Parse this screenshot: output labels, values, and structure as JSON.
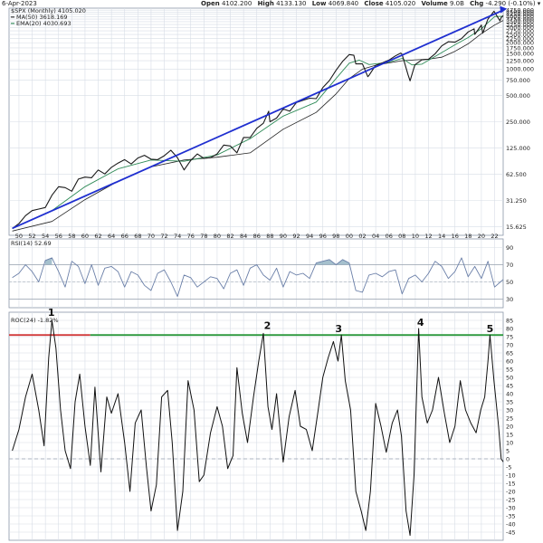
{
  "header": {
    "date": "6-Apr-2023",
    "open_label": "Open",
    "open": "4102.200",
    "high_label": "High",
    "high": "4133.130",
    "low_label": "Low",
    "low": "4069.840",
    "close_label": "Close",
    "close": "4105.020",
    "volume_label": "Volume",
    "volume": "9.0B",
    "chg_label": "Chg",
    "chg": "-4.290 (-0.10%)"
  },
  "colors": {
    "price": "#1a1a1a",
    "ma50": "#222222",
    "ema20": "#2e8b57",
    "trendline": "#1f2fd0",
    "rsi": "#6a7fa8",
    "rsi_fill": "#7fa5b8",
    "roc": "#111111",
    "level_red": "#d23c3c",
    "level_green": "#2e9a3e",
    "grid": "#d7dde6"
  },
  "chart_data": [
    {
      "type": "line",
      "title": "$SPX (Monthly) 4105.020",
      "scale": "log",
      "x_ticks": [
        "50",
        "52",
        "54",
        "56",
        "58",
        "60",
        "62",
        "64",
        "66",
        "68",
        "70",
        "72",
        "74",
        "76",
        "78",
        "80",
        "82",
        "84",
        "86",
        "88",
        "90",
        "92",
        "94",
        "96",
        "98",
        "00",
        "02",
        "04",
        "06",
        "08",
        "10",
        "12",
        "14",
        "16",
        "18",
        "20",
        "22"
      ],
      "y_ticks": [
        15.625,
        31.25,
        62.5,
        125,
        250,
        500,
        750,
        1000,
        1250,
        1500,
        1750,
        2000,
        2250,
        2500,
        2750,
        3000,
        3250,
        3500,
        3750,
        4000,
        4250,
        4500,
        4750
      ],
      "y_tick_labels": [
        "15.625",
        "31.250",
        "62.500",
        "125.000",
        "250.000",
        "500.000",
        "750.000",
        "1000.000",
        "1250.000",
        "1500.000",
        "1750.000",
        "2000.000",
        "2250.000",
        "2500.000",
        "2750.000",
        "3000.000",
        "3250.000",
        "3500.000",
        "3750.000",
        "4000.000",
        "4250.000",
        "4500.000",
        "4750.000"
      ],
      "x_range": [
        1948.5,
        2023.3
      ],
      "y_range": [
        12.5,
        5000
      ],
      "series": [
        {
          "name": "$SPX (Monthly)",
          "x": [
            1949,
            1950,
            1951,
            1952,
            1953,
            1954,
            1955,
            1956,
            1957,
            1958,
            1959,
            1960,
            1961,
            1962,
            1963,
            1964,
            1965,
            1966,
            1967,
            1968,
            1969,
            1970,
            1971,
            1972,
            1973,
            1974,
            1975,
            1976,
            1977,
            1978,
            1979,
            1980,
            1981,
            1982,
            1983,
            1984,
            1985,
            1986,
            1987,
            1987.8,
            1988,
            1989,
            1990,
            1991,
            1992,
            1993,
            1994,
            1995,
            1996,
            1997,
            1998,
            1999,
            2000,
            2000.7,
            2001,
            2002,
            2002.8,
            2003,
            2004,
            2005,
            2006,
            2007,
            2007.8,
            2008,
            2008.9,
            2009.2,
            2009.9,
            2010,
            2011,
            2012,
            2013,
            2014,
            2015,
            2016,
            2017,
            2018,
            2018.9,
            2019,
            2020,
            2020.2,
            2020.9,
            2021,
            2021.9,
            2022,
            2022.8,
            2023,
            2023.3
          ],
          "y": [
            15,
            17,
            21,
            24,
            25,
            26,
            36,
            45,
            44,
            40,
            55,
            58,
            57,
            70,
            63,
            75,
            84,
            92,
            82,
            96,
            103,
            93,
            92,
            102,
            118,
            97,
            70,
            90,
            107,
            95,
            97,
            107,
            135,
            132,
            110,
            165,
            165,
            210,
            240,
            330,
            250,
            275,
            350,
            330,
            415,
            440,
            465,
            460,
            615,
            740,
            970,
            1230,
            1469,
            1440,
            1150,
            1150,
            820,
            850,
            1110,
            1180,
            1270,
            1420,
            1530,
            1480,
            860,
            735,
            1100,
            1130,
            1280,
            1300,
            1500,
            1850,
            2060,
            2040,
            2240,
            2670,
            2900,
            2500,
            3200,
            2580,
            3600,
            3750,
            4600,
            4500,
            3580,
            3900,
            4105
          ]
        },
        {
          "name": "MA(50) 3618.169",
          "x": [
            1949,
            1955,
            1960,
            1965,
            1970,
            1975,
            1980,
            1985,
            1990,
            1995,
            1998,
            2000,
            2002,
            2004,
            2006,
            2008,
            2010,
            2012,
            2014,
            2016,
            2018,
            2020,
            2022,
            2023.3
          ],
          "y": [
            14,
            18,
            32,
            52,
            76,
            91,
            98,
            110,
            205,
            320,
            520,
            780,
            1000,
            1110,
            1180,
            1250,
            1280,
            1300,
            1370,
            1600,
            1950,
            2550,
            3200,
            3618
          ]
        },
        {
          "name": "EMA(20) 4030.693",
          "x": [
            1949,
            1955,
            1960,
            1965,
            1970,
            1975,
            1980,
            1985,
            1990,
            1995,
            1998,
            2000,
            2001.5,
            2003,
            2006,
            2008,
            2009.5,
            2011,
            2014,
            2016,
            2018,
            2020,
            2022,
            2023.3
          ],
          "y": [
            15,
            24,
            45,
            72,
            91,
            88,
            104,
            160,
            290,
            420,
            780,
            1170,
            1270,
            1130,
            1200,
            1330,
            1120,
            1140,
            1550,
            1900,
            2300,
            2900,
            4000,
            4030
          ]
        },
        {
          "name": "trendline",
          "x": [
            1949,
            2023.2
          ],
          "y": [
            15,
            4700
          ]
        }
      ]
    },
    {
      "type": "line",
      "title": "RSI(14) 52.69",
      "x_range": [
        1948.5,
        2023.3
      ],
      "y_range": [
        20,
        100
      ],
      "y_ticks": [
        30,
        50,
        70,
        90
      ],
      "y_tick_labels": [
        "30",
        "50",
        "70",
        "90"
      ],
      "series": [
        {
          "name": "RSI(14) 52.69",
          "x": [
            1949,
            1950,
            1951,
            1952,
            1953,
            1954,
            1955,
            1956,
            1957,
            1958,
            1959,
            1960,
            1961,
            1962,
            1963,
            1964,
            1965,
            1966,
            1967,
            1968,
            1969,
            1970,
            1971,
            1972,
            1973,
            1974,
            1975,
            1976,
            1977,
            1978,
            1979,
            1980,
            1981,
            1982,
            1983,
            1984,
            1985,
            1986,
            1987,
            1988,
            1989,
            1990,
            1991,
            1992,
            1993,
            1994,
            1995,
            1996,
            1997,
            1998,
            1999,
            2000,
            2001,
            2002,
            2003,
            2004,
            2005,
            2006,
            2007,
            2008,
            2009,
            2010,
            2011,
            2012,
            2013,
            2014,
            2015,
            2016,
            2017,
            2018,
            2019,
            2020,
            2021,
            2022,
            2023.3
          ],
          "y": [
            55,
            60,
            70,
            62,
            50,
            75,
            78,
            62,
            44,
            74,
            68,
            48,
            70,
            46,
            66,
            68,
            62,
            44,
            62,
            58,
            46,
            40,
            60,
            64,
            50,
            33,
            58,
            55,
            44,
            50,
            56,
            54,
            42,
            60,
            64,
            46,
            66,
            70,
            58,
            52,
            66,
            44,
            62,
            58,
            60,
            54,
            72,
            74,
            76,
            70,
            76,
            72,
            40,
            38,
            58,
            60,
            56,
            62,
            64,
            36,
            54,
            58,
            50,
            60,
            74,
            68,
            54,
            62,
            78,
            56,
            68,
            54,
            74,
            44,
            52.69
          ]
        }
      ]
    },
    {
      "type": "line",
      "title": "ROC(24) -1.82%",
      "x_range": [
        1948.5,
        2023.3
      ],
      "y_range": [
        -50,
        90
      ],
      "y_ticks": [
        -45,
        -40,
        -35,
        -30,
        -25,
        -20,
        -15,
        -10,
        -5,
        0,
        5,
        10,
        15,
        20,
        25,
        30,
        35,
        40,
        45,
        50,
        55,
        60,
        65,
        70,
        75,
        80,
        85
      ],
      "y_tick_labels": [
        "-45",
        "-40",
        "-35",
        "-30",
        "-25",
        "-20",
        "-15",
        "-10",
        "-5",
        "0",
        "5",
        "10",
        "15",
        "20",
        "25",
        "30",
        "35",
        "40",
        "45",
        "50",
        "55",
        "60",
        "65",
        "70",
        "75",
        "80",
        "85"
      ],
      "levels": [
        {
          "name": "red-level",
          "value": 76,
          "x_start": 1948.5,
          "x_end": 1960.8
        },
        {
          "name": "green-level",
          "value": 76,
          "x_start": 1960.8,
          "x_end": 2023.3
        }
      ],
      "annotations": [
        {
          "text": "1",
          "x": 1954.9,
          "y": 90
        },
        {
          "text": "2",
          "x": 1987.6,
          "y": 82
        },
        {
          "text": "3",
          "x": 1998.4,
          "y": 80
        },
        {
          "text": "4",
          "x": 2010.8,
          "y": 84
        },
        {
          "text": "5",
          "x": 2021.3,
          "y": 80
        }
      ],
      "series": [
        {
          "name": "ROC(24) -1.82%",
          "x": [
            1949,
            1950,
            1951,
            1952,
            1953,
            1953.8,
            1954.5,
            1955,
            1955.6,
            1956.3,
            1957,
            1957.8,
            1958.5,
            1959.2,
            1960,
            1960.8,
            1961.5,
            1962.4,
            1963.3,
            1964,
            1965,
            1966,
            1966.8,
            1967.6,
            1968.5,
            1969.3,
            1970,
            1970.8,
            1971.6,
            1972.5,
            1973.2,
            1974,
            1974.8,
            1975.6,
            1976.5,
            1977.3,
            1978,
            1979,
            1980,
            1980.8,
            1981.6,
            1982.4,
            1983,
            1983.8,
            1984.6,
            1985.5,
            1986.3,
            1987,
            1987.7,
            1988.3,
            1989,
            1990,
            1990.9,
            1991.8,
            1992.6,
            1993.5,
            1994.4,
            1995.3,
            1996,
            1996.8,
            1997.6,
            1998.3,
            1998.8,
            1999.4,
            2000.2,
            2001,
            2001.8,
            2002.5,
            2003.2,
            2004,
            2004.8,
            2005.6,
            2006.5,
            2007.3,
            2007.9,
            2008.6,
            2009.2,
            2009.8,
            2010.5,
            2011,
            2011.8,
            2012.6,
            2013.5,
            2014.4,
            2015.2,
            2016,
            2016.8,
            2017.6,
            2018.4,
            2019.2,
            2019.9,
            2020.5,
            2021,
            2021.3,
            2021.9,
            2022.6,
            2023,
            2023.3
          ],
          "y": [
            5,
            18,
            38,
            52,
            30,
            8,
            62,
            85,
            68,
            30,
            5,
            -6,
            35,
            52,
            20,
            -4,
            44,
            -8,
            38,
            28,
            40,
            10,
            -20,
            22,
            30,
            -5,
            -32,
            -16,
            38,
            42,
            10,
            -44,
            -20,
            48,
            30,
            -14,
            -10,
            16,
            32,
            20,
            -6,
            2,
            56,
            28,
            10,
            38,
            60,
            77,
            32,
            18,
            40,
            -2,
            26,
            42,
            20,
            18,
            5,
            30,
            50,
            62,
            72,
            60,
            76,
            48,
            30,
            -20,
            -32,
            -44,
            -20,
            34,
            20,
            4,
            22,
            30,
            14,
            -32,
            -47,
            -10,
            80,
            38,
            22,
            30,
            50,
            28,
            10,
            20,
            48,
            30,
            22,
            16,
            30,
            38,
            60,
            76,
            48,
            20,
            0,
            -1.82
          ]
        }
      ]
    }
  ]
}
